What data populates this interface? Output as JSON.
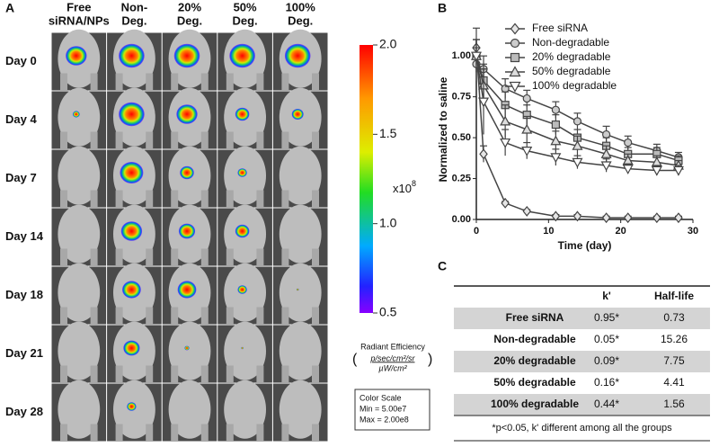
{
  "panel_labels": [
    "A",
    "B",
    "C"
  ],
  "panel_a": {
    "columns": [
      [
        "Free",
        "siRNA/NPs"
      ],
      [
        "Non-",
        "Deg."
      ],
      [
        "20%",
        "Deg."
      ],
      [
        "50%",
        "Deg."
      ],
      [
        "100%",
        "Deg."
      ]
    ],
    "rows": [
      "Day 0",
      "Day 4",
      "Day 7",
      "Day 14",
      "Day 18",
      "Day 21",
      "Day 28"
    ],
    "colorbar": {
      "lim": [
        0.5,
        2.0
      ],
      "ticks": [
        {
          "value": 2.0,
          "label": "2.0"
        },
        {
          "value": 1.5,
          "label": "1.5"
        },
        {
          "value": 1.0,
          "label": "1.0"
        },
        {
          "value": 0.5,
          "label": "0.5"
        }
      ],
      "multiplier": "x10",
      "exponent": "8",
      "unit_label": "Radiant Efficiency",
      "unit_top": "p/sec/cm²/sr",
      "unit_bottom": "µW/cm²"
    },
    "color_scale": [
      "Color Scale",
      "Min = 5.00e7",
      "Max = 2.00e8"
    ]
  },
  "chart_data": {
    "type": "line",
    "x": [
      0,
      1,
      4,
      7,
      11,
      14,
      18,
      21,
      25,
      28
    ],
    "xlabel": "Time (day)",
    "ylabel": "Normalized to saline",
    "xlim": [
      0,
      30
    ],
    "xticks": [
      0,
      10,
      20,
      30
    ],
    "ylim": [
      0,
      1.1
    ],
    "yticks": [
      {
        "value": 0,
        "label": "0.00"
      },
      {
        "value": 0.25,
        "label": "0.25"
      },
      {
        "value": 0.5,
        "label": "0.50"
      },
      {
        "value": 0.75,
        "label": "0.75"
      },
      {
        "value": 1.0,
        "label": "1.00"
      }
    ],
    "legend": "upper right",
    "series": [
      {
        "name": "Free siRNA",
        "color": "#444444",
        "marker": "diamond",
        "fill": "#e6e6e6",
        "values": [
          1.05,
          0.4,
          0.1,
          0.05,
          0.02,
          0.02,
          0.01,
          0.01,
          0.01,
          0.01
        ],
        "errors": [
          0.12,
          0.05,
          0.01,
          0.01,
          0.01,
          0.01,
          0.01,
          0.01,
          0.01,
          0.01
        ]
      },
      {
        "name": "Non-degradable",
        "color": "#444444",
        "marker": "circle",
        "fill": "#cccccc",
        "values": [
          0.95,
          0.92,
          0.8,
          0.74,
          0.67,
          0.6,
          0.52,
          0.47,
          0.42,
          0.38
        ],
        "errors": [
          0.1,
          0.08,
          0.06,
          0.05,
          0.05,
          0.05,
          0.05,
          0.04,
          0.04,
          0.03
        ]
      },
      {
        "name": "20% degradable",
        "color": "#444444",
        "marker": "square",
        "fill": "#bbbbbb",
        "values": [
          1.0,
          0.85,
          0.7,
          0.64,
          0.58,
          0.5,
          0.45,
          0.4,
          0.4,
          0.36
        ],
        "errors": [
          0.1,
          0.1,
          0.08,
          0.06,
          0.06,
          0.05,
          0.05,
          0.04,
          0.04,
          0.03
        ]
      },
      {
        "name": "50% degradable",
        "color": "#444444",
        "marker": "triangle-up",
        "fill": "#dddddd",
        "values": [
          1.0,
          0.82,
          0.6,
          0.55,
          0.48,
          0.45,
          0.4,
          0.36,
          0.35,
          0.33
        ],
        "errors": [
          0.1,
          0.1,
          0.1,
          0.08,
          0.06,
          0.06,
          0.05,
          0.04,
          0.04,
          0.03
        ]
      },
      {
        "name": "100% degradable",
        "color": "#444444",
        "marker": "triangle-down",
        "fill": "#ffffff",
        "values": [
          1.0,
          0.72,
          0.47,
          0.42,
          0.38,
          0.35,
          0.33,
          0.31,
          0.3,
          0.3
        ],
        "errors": [
          0.1,
          0.2,
          0.08,
          0.05,
          0.05,
          0.04,
          0.04,
          0.03,
          0.03,
          0.03
        ]
      }
    ]
  },
  "table": {
    "header": [
      "k'",
      "Half-life"
    ],
    "rows": [
      [
        "Free siRNA",
        "0.95*",
        "0.73"
      ],
      [
        "Non-degradable",
        "0.05*",
        "15.26"
      ],
      [
        "20% degradable",
        "0.09*",
        "7.75"
      ],
      [
        "50% degradable",
        "0.16*",
        "4.41"
      ],
      [
        "100% degradable",
        "0.44*",
        "1.56"
      ]
    ],
    "footnote": "*p<0.05,  k' different among all the groups"
  }
}
